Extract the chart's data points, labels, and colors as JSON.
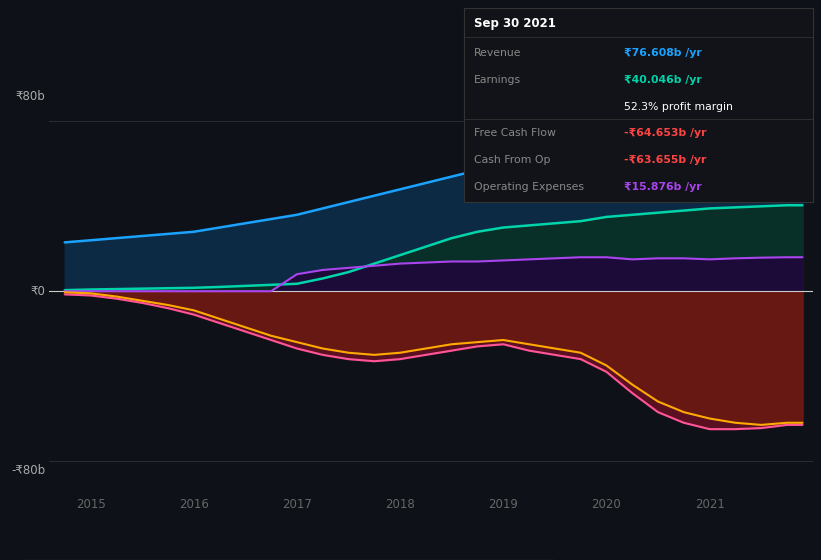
{
  "background_color": "#0e1218",
  "plot_bg_color": "#0e1218",
  "y_label_top": "₹80b",
  "y_label_zero": "₹0",
  "y_label_bottom": "-₹80b",
  "x_ticks": [
    2015,
    2016,
    2017,
    2018,
    2019,
    2020,
    2021
  ],
  "ylim": [
    -95,
    95
  ],
  "xlim_start": 2014.6,
  "xlim_end": 2022.0,
  "series": {
    "revenue": {
      "color": "#1aa3ff",
      "fill_color": "#0d2d4a",
      "label": "Revenue",
      "x": [
        2014.75,
        2015.0,
        2015.25,
        2015.5,
        2015.75,
        2016.0,
        2016.25,
        2016.5,
        2016.75,
        2017.0,
        2017.25,
        2017.5,
        2017.75,
        2018.0,
        2018.25,
        2018.5,
        2018.75,
        2019.0,
        2019.25,
        2019.5,
        2019.75,
        2020.0,
        2020.25,
        2020.5,
        2020.75,
        2021.0,
        2021.25,
        2021.5,
        2021.75,
        2021.9
      ],
      "y": [
        23,
        24,
        25,
        26,
        27,
        28,
        30,
        32,
        34,
        36,
        39,
        42,
        45,
        48,
        51,
        54,
        57,
        58,
        59,
        61,
        64,
        65,
        67,
        68,
        70,
        72,
        74,
        76,
        78,
        78.5
      ]
    },
    "earnings": {
      "color": "#00d4aa",
      "fill_color": "#0a3030",
      "label": "Earnings",
      "x": [
        2014.75,
        2015.0,
        2015.25,
        2015.5,
        2015.75,
        2016.0,
        2016.25,
        2016.5,
        2016.75,
        2017.0,
        2017.25,
        2017.5,
        2017.75,
        2018.0,
        2018.25,
        2018.5,
        2018.75,
        2019.0,
        2019.25,
        2019.5,
        2019.75,
        2020.0,
        2020.25,
        2020.5,
        2020.75,
        2021.0,
        2021.25,
        2021.5,
        2021.75,
        2021.9
      ],
      "y": [
        0.5,
        0.8,
        1.0,
        1.2,
        1.4,
        1.6,
        2.0,
        2.5,
        3.0,
        3.5,
        6,
        9,
        13,
        17,
        21,
        25,
        28,
        30,
        31,
        32,
        33,
        35,
        36,
        37,
        38,
        39,
        39.5,
        40,
        40.5,
        40.5
      ]
    },
    "operating_expenses": {
      "color": "#aa44ee",
      "fill_color": "#1a0a33",
      "label": "Operating Expenses",
      "x": [
        2014.75,
        2015.0,
        2015.25,
        2015.5,
        2015.75,
        2016.0,
        2016.25,
        2016.5,
        2016.75,
        2017.0,
        2017.25,
        2017.5,
        2017.75,
        2018.0,
        2018.25,
        2018.5,
        2018.75,
        2019.0,
        2019.25,
        2019.5,
        2019.75,
        2020.0,
        2020.25,
        2020.5,
        2020.75,
        2021.0,
        2021.25,
        2021.5,
        2021.75,
        2021.9
      ],
      "y": [
        0,
        0,
        0,
        0,
        0,
        0,
        0,
        0,
        0,
        8,
        10,
        11,
        12,
        13,
        13.5,
        14,
        14,
        14.5,
        15,
        15.5,
        16,
        16,
        15,
        15.5,
        15.5,
        15,
        15.5,
        15.8,
        16,
        16
      ]
    },
    "free_cash_flow": {
      "color": "#ff5599",
      "fill_color": "#4a0018",
      "label": "Free Cash Flow",
      "x": [
        2014.75,
        2015.0,
        2015.25,
        2015.5,
        2015.75,
        2016.0,
        2016.25,
        2016.5,
        2016.75,
        2017.0,
        2017.25,
        2017.5,
        2017.75,
        2018.0,
        2018.25,
        2018.5,
        2018.75,
        2019.0,
        2019.25,
        2019.5,
        2019.75,
        2020.0,
        2020.25,
        2020.5,
        2020.75,
        2021.0,
        2021.25,
        2021.5,
        2021.75,
        2021.9
      ],
      "y": [
        -1.5,
        -2.0,
        -3.5,
        -5.5,
        -8,
        -11,
        -15,
        -19,
        -23,
        -27,
        -30,
        -32,
        -33,
        -32,
        -30,
        -28,
        -26,
        -25,
        -28,
        -30,
        -32,
        -38,
        -48,
        -57,
        -62,
        -65,
        -65,
        -64.5,
        -63,
        -63
      ]
    },
    "cash_from_op": {
      "color": "#ffaa00",
      "fill_color": "#5a1a00",
      "label": "Cash From Op",
      "x": [
        2014.75,
        2015.0,
        2015.25,
        2015.5,
        2015.75,
        2016.0,
        2016.25,
        2016.5,
        2016.75,
        2017.0,
        2017.25,
        2017.5,
        2017.75,
        2018.0,
        2018.25,
        2018.5,
        2018.75,
        2019.0,
        2019.25,
        2019.5,
        2019.75,
        2020.0,
        2020.25,
        2020.5,
        2020.75,
        2021.0,
        2021.25,
        2021.5,
        2021.75,
        2021.9
      ],
      "y": [
        -0.5,
        -1.0,
        -2.5,
        -4.5,
        -6.5,
        -9,
        -13,
        -17,
        -21,
        -24,
        -27,
        -29,
        -30,
        -29,
        -27,
        -25,
        -24,
        -23,
        -25,
        -27,
        -29,
        -35,
        -44,
        -52,
        -57,
        -60,
        -62,
        -63,
        -62,
        -62
      ]
    }
  },
  "info_box": {
    "title": "Sep 30 2021",
    "rows": [
      {
        "label": "Revenue",
        "value": "₹76.608b /yr",
        "value_color": "#1aa3ff",
        "separator_after": false
      },
      {
        "label": "Earnings",
        "value": "₹40.046b /yr",
        "value_color": "#00d4aa",
        "separator_after": false
      },
      {
        "label": "",
        "value": "52.3% profit margin",
        "value_color": "#ffffff",
        "separator_after": true
      },
      {
        "label": "Free Cash Flow",
        "value": "-₹64.653b /yr",
        "value_color": "#ff4444",
        "separator_after": false
      },
      {
        "label": "Cash From Op",
        "value": "-₹63.655b /yr",
        "value_color": "#ff4444",
        "separator_after": false
      },
      {
        "label": "Operating Expenses",
        "value": "₹15.876b /yr",
        "value_color": "#aa44ee",
        "separator_after": false
      }
    ]
  },
  "legend_items": [
    {
      "label": "Revenue",
      "color": "#1aa3ff"
    },
    {
      "label": "Earnings",
      "color": "#00d4aa"
    },
    {
      "label": "Free Cash Flow",
      "color": "#ff5599"
    },
    {
      "label": "Cash From Op",
      "color": "#ffaa00"
    },
    {
      "label": "Operating Expenses",
      "color": "#aa44ee"
    }
  ]
}
